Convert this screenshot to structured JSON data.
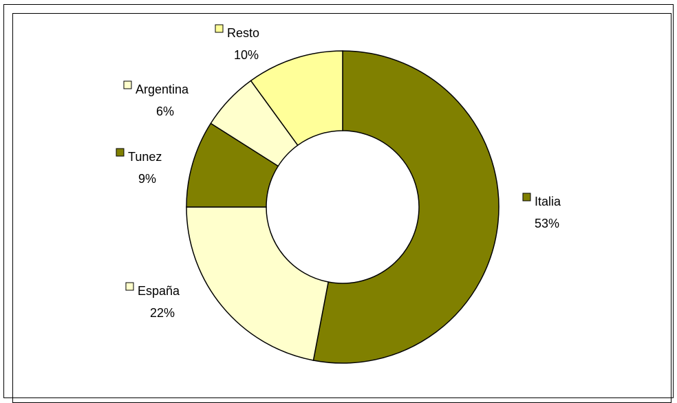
{
  "chart_data": {
    "type": "pie",
    "donut": true,
    "title": "",
    "categories": [
      "Italia",
      "España",
      "Tunez",
      "Argentina",
      "Resto"
    ],
    "values": [
      53,
      22,
      9,
      6,
      10
    ],
    "value_labels": [
      "53%",
      "22%",
      "9%",
      "6%",
      "10%"
    ],
    "colors": [
      "#808000",
      "#FFFFCC",
      "#808000",
      "#FFFFCC",
      "#FFFF99"
    ],
    "start_at": "12 o'clock",
    "direction": "clockwise",
    "legend": "none",
    "data_labels": "category name with key and percentage, outside slices"
  }
}
